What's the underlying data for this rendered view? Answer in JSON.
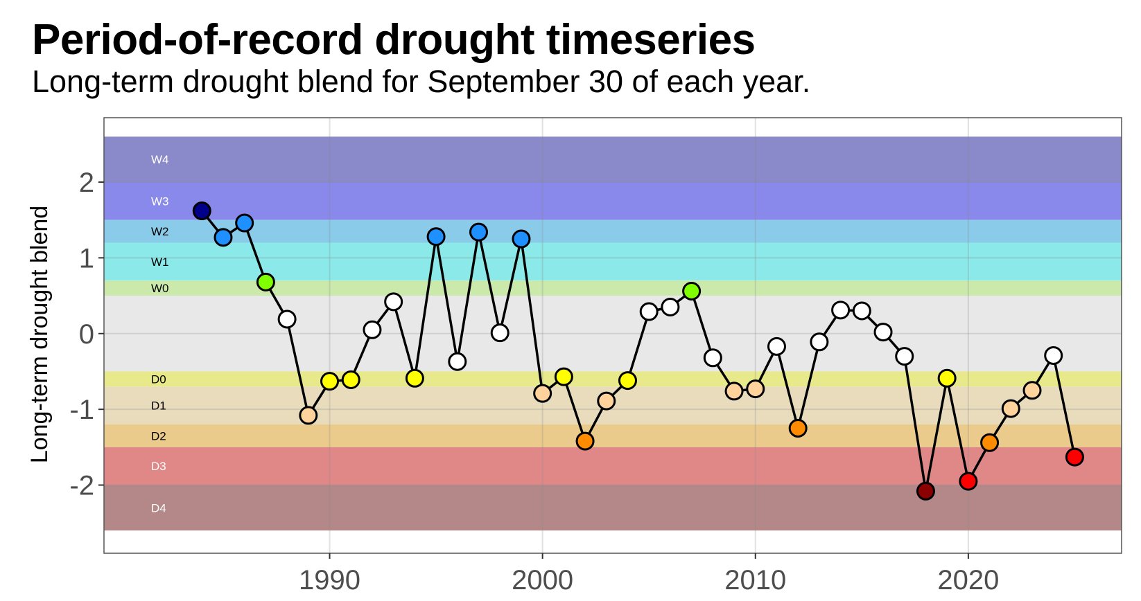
{
  "title": "Period-of-record drought timeseries",
  "subtitle": "Long-term drought blend for September 30 of each year.",
  "chart_data": {
    "type": "scatter",
    "title": "Period-of-record drought timeseries",
    "subtitle": "Long-term drought blend for September 30 of each year.",
    "xlabel": "",
    "ylabel": "Long-term drought blend",
    "xlim": [
      1979.4,
      2027.2
    ],
    "ylim": [
      -2.9,
      2.85
    ],
    "x_ticks": [
      1990,
      2000,
      2010,
      2020
    ],
    "y_ticks": [
      2,
      1,
      0,
      -1,
      -2
    ],
    "y_tick_labels": [
      "2",
      "1",
      "0",
      "-1",
      "-2"
    ],
    "grid": true,
    "line_color": "#000000",
    "bands": [
      {
        "label": "W4",
        "from": 2.0,
        "to": 2.6,
        "color": "#8a89c9",
        "label_color": "#ffffff"
      },
      {
        "label": "W3",
        "from": 1.5,
        "to": 2.0,
        "color": "#8889ea",
        "label_color": "#ffffff"
      },
      {
        "label": "W2",
        "from": 1.2,
        "to": 1.5,
        "color": "#8bcbea",
        "label_color": "#000000"
      },
      {
        "label": "W1",
        "from": 0.7,
        "to": 1.2,
        "color": "#8be9e9",
        "label_color": "#000000"
      },
      {
        "label": "W0",
        "from": 0.5,
        "to": 0.7,
        "color": "#cae9ab",
        "label_color": "#000000"
      },
      {
        "label": "",
        "from": -0.5,
        "to": 0.5,
        "color": "#e8e8e8",
        "label_color": "#000000"
      },
      {
        "label": "D0",
        "from": -0.7,
        "to": -0.5,
        "color": "#e8e98a",
        "label_color": "#000000"
      },
      {
        "label": "D1",
        "from": -1.2,
        "to": -0.7,
        "color": "#e8dcbd",
        "label_color": "#000000"
      },
      {
        "label": "D2",
        "from": -1.5,
        "to": -1.2,
        "color": "#ebcb8b",
        "label_color": "#000000"
      },
      {
        "label": "D3",
        "from": -2.0,
        "to": -1.5,
        "color": "#e08888",
        "label_color": "#ffffff"
      },
      {
        "label": "D4",
        "from": -2.6,
        "to": -2.0,
        "color": "#b48888",
        "label_color": "#ffffff"
      }
    ],
    "series": [
      {
        "x": [
          1984,
          1985,
          1986,
          1987,
          1988,
          1989,
          1990,
          1991,
          1992,
          1993,
          1994,
          1995,
          1996,
          1997,
          1998,
          1999,
          2000,
          2001,
          2002,
          2003,
          2004,
          2005,
          2006,
          2007,
          2008,
          2009,
          2010,
          2011,
          2012,
          2013,
          2014,
          2015,
          2016,
          2017,
          2018,
          2019,
          2020,
          2021,
          2022,
          2023,
          2024,
          2025
        ],
        "values": [
          1.62,
          1.27,
          1.46,
          0.68,
          0.19,
          -1.08,
          -0.63,
          -0.61,
          0.05,
          0.42,
          -0.59,
          1.28,
          -0.37,
          1.34,
          0.01,
          1.25,
          -0.79,
          -0.57,
          -1.42,
          -0.89,
          -0.62,
          0.29,
          0.35,
          0.56,
          -0.32,
          -0.76,
          -0.73,
          -0.17,
          -1.25,
          -0.11,
          0.31,
          0.3,
          0.02,
          -0.3,
          -2.08,
          -0.59,
          -1.95,
          -1.44,
          -0.99,
          -0.75,
          -0.29,
          -1.63
        ],
        "colors": [
          "#00008b",
          "#1e90ff",
          "#1e90ff",
          "#7fff00",
          "#ffffff",
          "#ffd39b",
          "#ffff00",
          "#ffff00",
          "#ffffff",
          "#ffffff",
          "#ffff00",
          "#1e90ff",
          "#ffffff",
          "#1e90ff",
          "#ffffff",
          "#1e90ff",
          "#ffd39b",
          "#ffff00",
          "#ff8c00",
          "#ffd39b",
          "#ffff00",
          "#ffffff",
          "#ffffff",
          "#7fff00",
          "#ffffff",
          "#ffd39b",
          "#ffd39b",
          "#ffffff",
          "#ff8c00",
          "#ffffff",
          "#ffffff",
          "#ffffff",
          "#ffffff",
          "#ffffff",
          "#8b0000",
          "#ffff00",
          "#ff0000",
          "#ff8c00",
          "#ffd39b",
          "#ffd39b",
          "#ffffff",
          "#ff0000"
        ]
      }
    ]
  }
}
